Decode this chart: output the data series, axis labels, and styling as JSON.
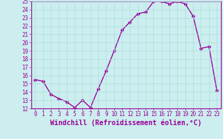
{
  "x": [
    0,
    1,
    2,
    3,
    4,
    5,
    6,
    7,
    8,
    9,
    10,
    11,
    12,
    13,
    14,
    15,
    16,
    17,
    18,
    19,
    20,
    21,
    22,
    23
  ],
  "y": [
    15.5,
    15.3,
    13.7,
    13.2,
    12.8,
    12.1,
    13.0,
    12.1,
    14.4,
    16.6,
    19.0,
    21.5,
    22.5,
    23.5,
    23.7,
    25.0,
    25.0,
    24.7,
    25.0,
    24.7,
    23.2,
    19.3,
    19.5,
    14.2
  ],
  "line_color": "#990099",
  "marker": "D",
  "marker_size": 2.5,
  "linewidth": 1.0,
  "xlabel": "Windchill (Refroidissement éolien,°C)",
  "xlabel_fontsize": 7,
  "ylim": [
    12,
    25
  ],
  "xlim": [
    -0.5,
    23.5
  ],
  "yticks": [
    12,
    13,
    14,
    15,
    16,
    17,
    18,
    19,
    20,
    21,
    22,
    23,
    24,
    25
  ],
  "xticks": [
    0,
    1,
    2,
    3,
    4,
    5,
    6,
    7,
    8,
    9,
    10,
    11,
    12,
    13,
    14,
    15,
    16,
    17,
    18,
    19,
    20,
    21,
    22,
    23
  ],
  "grid_color": "#aadddd",
  "bg_color": "#cceeee",
  "tick_fontsize": 5.5,
  "spine_color": "#990099"
}
